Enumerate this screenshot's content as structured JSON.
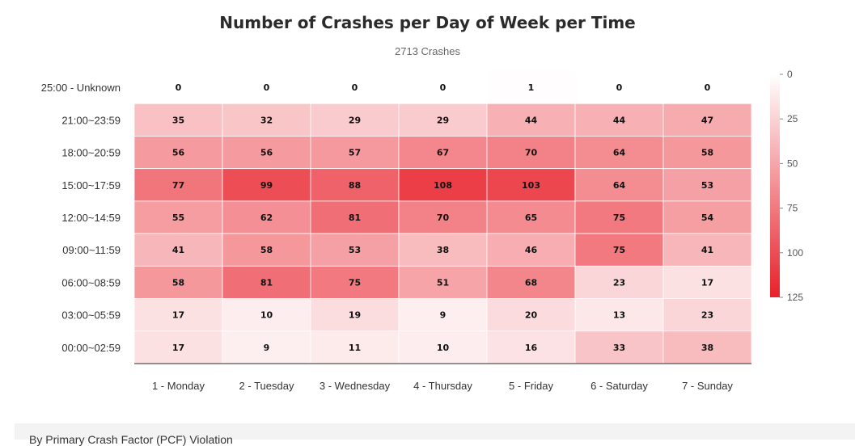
{
  "chart_data": {
    "type": "heatmap",
    "title": "Number of Crashes per Day of Week per Time",
    "subtitle": "2713 Crashes",
    "columns": [
      "1 - Monday",
      "2 - Tuesday",
      "3 - Wednesday",
      "4 - Thursday",
      "5 - Friday",
      "6 - Saturday",
      "7 - Sunday"
    ],
    "rows": [
      "25:00 - Unknown",
      "21:00~23:59",
      "18:00~20:59",
      "15:00~17:59",
      "12:00~14:59",
      "09:00~11:59",
      "06:00~08:59",
      "03:00~05:59",
      "00:00~02:59"
    ],
    "values": [
      [
        0,
        0,
        0,
        0,
        1,
        0,
        0
      ],
      [
        35,
        32,
        29,
        29,
        44,
        44,
        47
      ],
      [
        56,
        56,
        57,
        67,
        70,
        64,
        58
      ],
      [
        77,
        99,
        88,
        108,
        103,
        64,
        53
      ],
      [
        55,
        62,
        81,
        70,
        65,
        75,
        54
      ],
      [
        41,
        58,
        53,
        38,
        46,
        75,
        41
      ],
      [
        58,
        81,
        75,
        51,
        68,
        23,
        17
      ],
      [
        17,
        10,
        19,
        9,
        20,
        13,
        23
      ],
      [
        17,
        9,
        11,
        10,
        16,
        33,
        38
      ]
    ],
    "color_scale": {
      "min": 0,
      "max": 125,
      "ticks": [
        0,
        25,
        50,
        75,
        100,
        125
      ],
      "low_color": "#ffffff",
      "high_color": "#e8202a"
    }
  },
  "footer": {
    "text": "By Primary Crash Factor (PCF) Violation"
  }
}
